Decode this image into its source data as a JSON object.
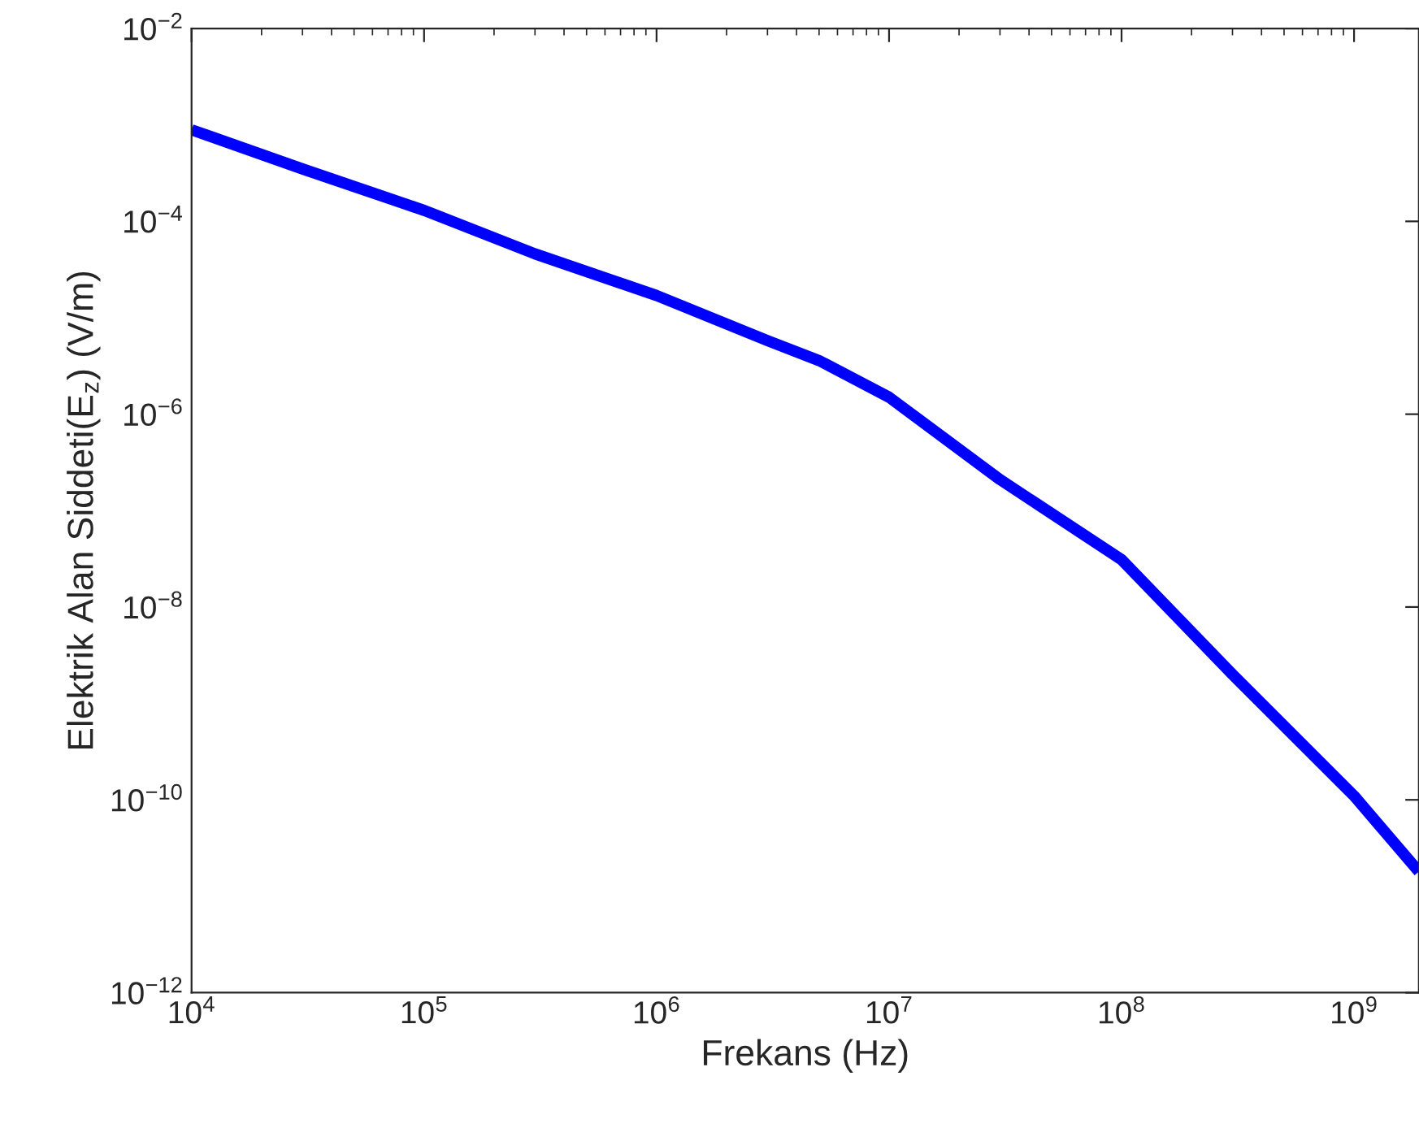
{
  "chart_data": {
    "type": "line",
    "xlabel": "Frekans (Hz)",
    "ylabel": "Elektrik Alan Siddeti(E$_{z}$) (V/m)",
    "log": "xy",
    "grid": false,
    "legend": false,
    "marker": "none",
    "line_style": "solid",
    "xlim": [
      10000,
      1900000000
    ],
    "ylim": [
      1e-12,
      0.01
    ],
    "xticks": [
      {
        "value": 10000,
        "label": "10$^{4}$"
      },
      {
        "value": 100000,
        "label": "10$^{5}$"
      },
      {
        "value": 1000000,
        "label": "10$^{6}$"
      },
      {
        "value": 10000000,
        "label": "10$^{7}$"
      },
      {
        "value": 100000000,
        "label": "10$^{8}$"
      },
      {
        "value": 1000000000,
        "label": "10$^{9}$"
      }
    ],
    "yticks": [
      {
        "value": 1e-12,
        "label": "10$^{−12}$"
      },
      {
        "value": 1e-10,
        "label": "10$^{−10}$"
      },
      {
        "value": 1e-08,
        "label": "10$^{−8}$"
      },
      {
        "value": 1e-06,
        "label": "10$^{−6}$"
      },
      {
        "value": 0.0001,
        "label": "10$^{−4}$"
      },
      {
        "value": 0.01,
        "label": "10$^{−2}$"
      }
    ],
    "x": [
      10000,
      30000,
      100000,
      300000,
      1000000,
      3000000,
      5000000,
      10000000,
      30000000,
      100000000,
      300000000,
      1000000000,
      1900000000
    ],
    "series": [
      {
        "color": "#0000ff",
        "values": [
          0.00089,
          0.00035,
          0.00013,
          4.6e-05,
          1.7e-05,
          5.8e-06,
          3.6e-06,
          1.5e-06,
          2.1e-07,
          3.1e-08,
          2e-09,
          1.1e-10,
          1.8e-11
        ]
      }
    ]
  }
}
